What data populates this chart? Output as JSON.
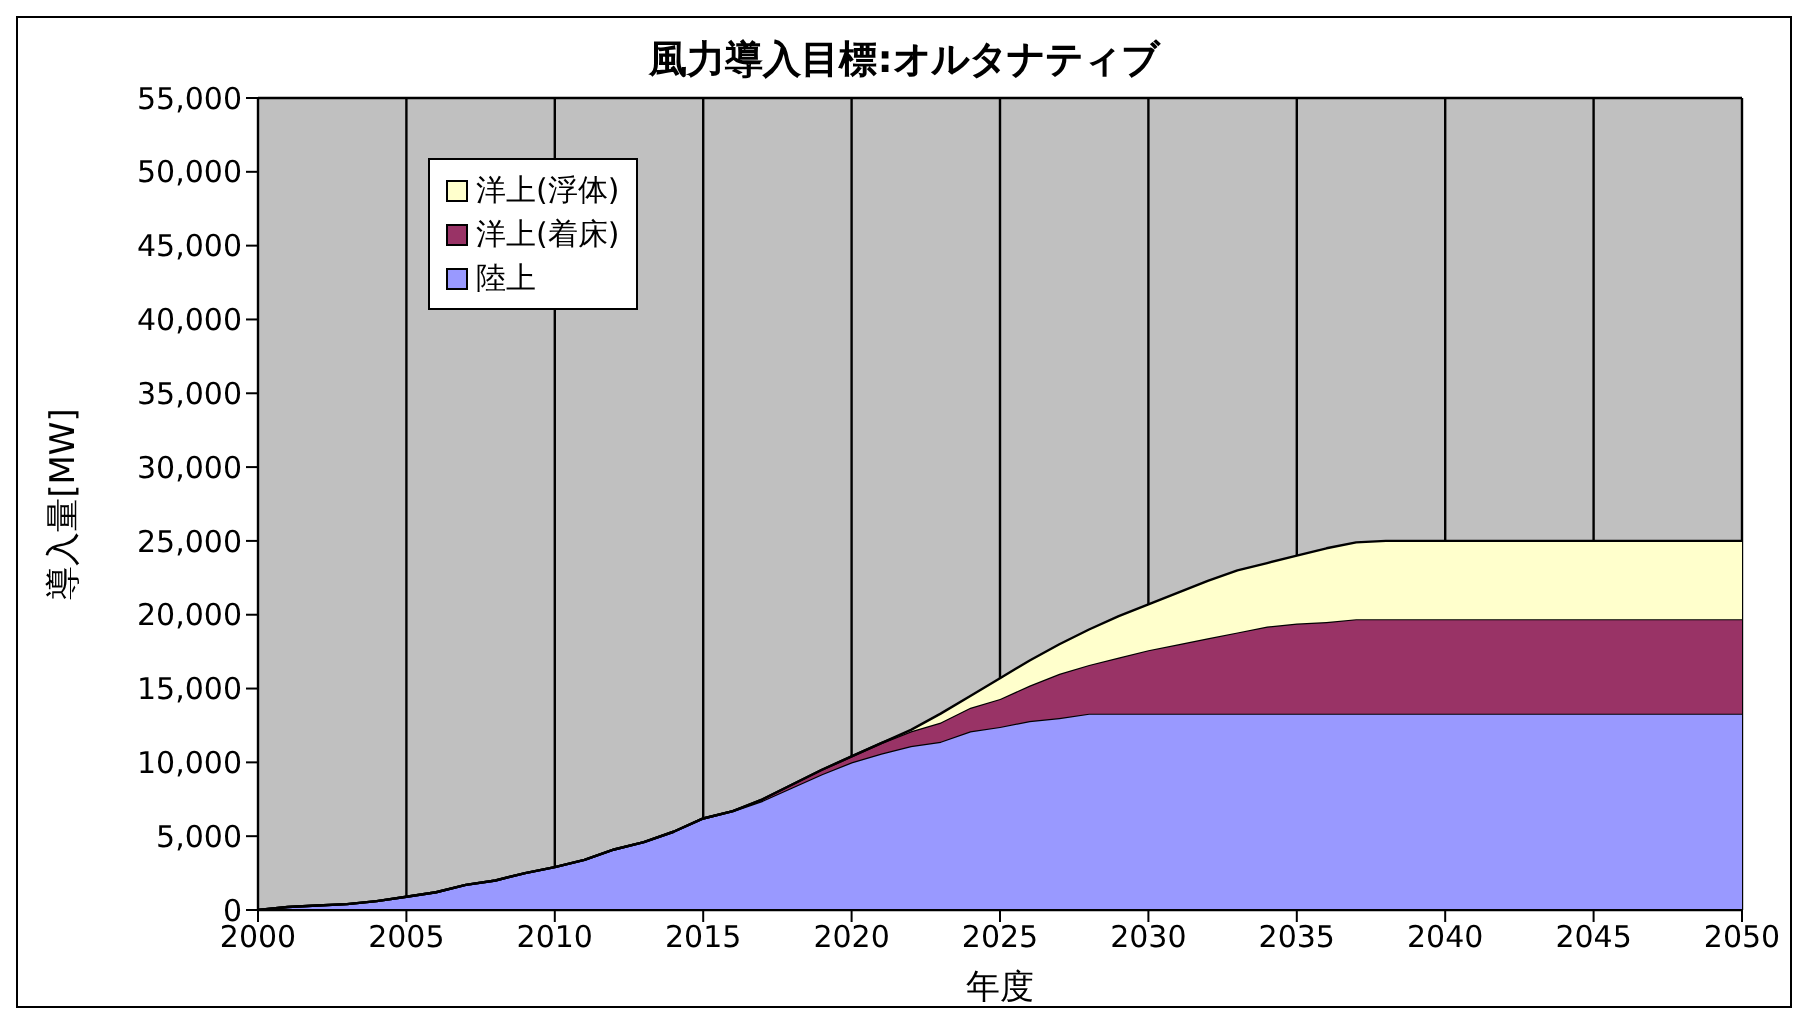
{
  "chart_data": {
    "type": "area",
    "stacked": true,
    "title": "風力導入目標:オルタナティブ",
    "xlabel": "年度",
    "ylabel": "導入量[MW]",
    "x": [
      2000,
      2001,
      2002,
      2003,
      2004,
      2005,
      2006,
      2007,
      2008,
      2009,
      2010,
      2011,
      2012,
      2013,
      2014,
      2015,
      2016,
      2017,
      2018,
      2019,
      2020,
      2021,
      2022,
      2023,
      2024,
      2025,
      2026,
      2027,
      2028,
      2029,
      2030,
      2031,
      2032,
      2033,
      2034,
      2035,
      2036,
      2037,
      2038,
      2039,
      2040,
      2041,
      2042,
      2043,
      2044,
      2045,
      2046,
      2047,
      2048,
      2049,
      2050
    ],
    "series": [
      {
        "name": "陸上",
        "color": "#9999ff",
        "values": [
          0,
          200,
          300,
          400,
          600,
          900,
          1200,
          1700,
          2000,
          2500,
          2900,
          3400,
          4100,
          4600,
          5300,
          6200,
          6700,
          7400,
          8300,
          9200,
          10000,
          10600,
          11100,
          11400,
          12100,
          12400,
          12800,
          13000,
          13300,
          13300,
          13300,
          13300,
          13300,
          13300,
          13300,
          13300,
          13300,
          13300,
          13300,
          13300,
          13300,
          13300,
          13300,
          13300,
          13300,
          13300,
          13300,
          13300,
          13300,
          13300,
          13300
        ]
      },
      {
        "name": "洋上(着床)",
        "color": "#993366",
        "values": [
          0,
          0,
          0,
          0,
          0,
          0,
          0,
          0,
          0,
          0,
          0,
          0,
          0,
          0,
          0,
          0,
          0,
          100,
          200,
          300,
          400,
          700,
          1000,
          1300,
          1600,
          1900,
          2400,
          3000,
          3300,
          3800,
          4300,
          4700,
          5100,
          5500,
          5900,
          6100,
          6200,
          6400,
          6400,
          6400,
          6400,
          6400,
          6400,
          6400,
          6400,
          6400,
          6400,
          6400,
          6400,
          6400,
          6400
        ]
      },
      {
        "name": "洋上(浮体)",
        "color": "#ffffcc",
        "values": [
          0,
          0,
          0,
          0,
          0,
          0,
          0,
          0,
          0,
          0,
          0,
          0,
          0,
          0,
          0,
          0,
          0,
          0,
          0,
          0,
          0,
          0,
          100,
          600,
          800,
          1400,
          1700,
          2000,
          2400,
          2800,
          3100,
          3500,
          3900,
          4200,
          4300,
          4600,
          5000,
          5200,
          5300,
          5300,
          5300,
          5300,
          5300,
          5300,
          5300,
          5300,
          5300,
          5300,
          5300,
          5300,
          5300
        ]
      }
    ],
    "xlim": [
      2000,
      2050
    ],
    "xticks": [
      2000,
      2005,
      2010,
      2015,
      2020,
      2025,
      2030,
      2035,
      2040,
      2045,
      2050
    ],
    "ylim": [
      0,
      55000
    ],
    "yticks": [
      0,
      {
        "value": 5000,
        "label": "5,000"
      },
      {
        "value": 10000,
        "label": "10,000"
      },
      {
        "value": 15000,
        "label": "15,000"
      },
      {
        "value": 20000,
        "label": "20,000"
      },
      {
        "value": 25000,
        "label": "25,000"
      },
      {
        "value": 30000,
        "label": "30,000"
      },
      {
        "value": 35000,
        "label": "35,000"
      },
      {
        "value": 40000,
        "label": "40,000"
      },
      {
        "value": 45000,
        "label": "45,000"
      },
      {
        "value": 50000,
        "label": "50,000"
      },
      {
        "value": 55000,
        "label": "55,000"
      }
    ],
    "grid": true,
    "legend": "top left"
  }
}
